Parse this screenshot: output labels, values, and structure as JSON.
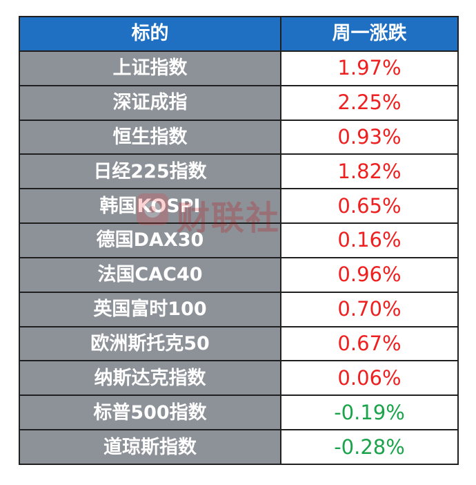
{
  "table": {
    "header": {
      "col1": "标的",
      "col2": "周一涨跌"
    },
    "rows": [
      {
        "name": "上证指数",
        "change": "1.97%",
        "direction": "up"
      },
      {
        "name": "深证成指",
        "change": "2.25%",
        "direction": "up"
      },
      {
        "name": "恒生指数",
        "change": "0.93%",
        "direction": "up"
      },
      {
        "name": "日经225指数",
        "change": "1.82%",
        "direction": "up"
      },
      {
        "name": "韩国KOSPI",
        "change": "0.65%",
        "direction": "up"
      },
      {
        "name": "德国DAX30",
        "change": "0.16%",
        "direction": "up"
      },
      {
        "name": "法国CAC40",
        "change": "0.96%",
        "direction": "up"
      },
      {
        "name": "英国富时100",
        "change": "0.70%",
        "direction": "up"
      },
      {
        "name": "欧洲斯托克50",
        "change": "0.67%",
        "direction": "up"
      },
      {
        "name": "纳斯达克指数",
        "change": "0.06%",
        "direction": "up"
      },
      {
        "name": "标普500指数",
        "change": "-0.19%",
        "direction": "down"
      },
      {
        "name": "道琼斯指数",
        "change": "-0.28%",
        "direction": "down"
      }
    ]
  },
  "watermark": {
    "text": "财联社",
    "icon": "cls-logo-icon"
  },
  "colors": {
    "header_bg": "#1f70c2",
    "name_bg": "#8d9198",
    "up": "#ef1f1f",
    "down": "#1aa34a",
    "border": "#1f1f1f"
  }
}
